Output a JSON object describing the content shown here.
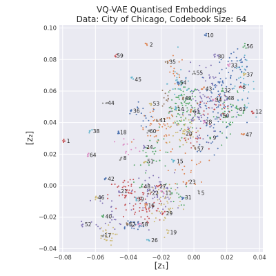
{
  "chart_data": {
    "type": "scatter",
    "title": "VQ-VAE Quantised Embeddings",
    "subtitle": "Data: City of Chicago, Codebook Size: 64",
    "xlabel": "[z₁]",
    "ylabel": "[z₂]",
    "xlim": [
      -0.082,
      0.042
    ],
    "ylim": [
      -0.042,
      0.102
    ],
    "xticks": [
      "−0.08",
      "−0.06",
      "−0.04",
      "−0.02",
      "0.00",
      "0.02",
      "0.04"
    ],
    "yticks": [
      "−0.04",
      "−0.02",
      "0.00",
      "0.02",
      "0.04",
      "0.06",
      "0.08",
      "0.10"
    ],
    "grid": true,
    "background": "#eaeaf2",
    "palette": [
      "#4c72b0",
      "#dd8452",
      "#55a868",
      "#c44e52",
      "#8172b3",
      "#937860",
      "#da8bc3",
      "#8c8c8c",
      "#ccb974",
      "#64b5cd"
    ],
    "codebook_labels": [
      {
        "label": "10",
        "x": 0.008,
        "y": 0.0955
      },
      {
        "label": "2",
        "x": -0.027,
        "y": 0.0895
      },
      {
        "label": "56",
        "x": 0.032,
        "y": 0.0885
      },
      {
        "label": "59",
        "x": -0.047,
        "y": 0.0825
      },
      {
        "label": "30",
        "x": 0.0145,
        "y": 0.082
      },
      {
        "label": "35",
        "x": -0.015,
        "y": 0.0785
      },
      {
        "label": "33",
        "x": 0.0225,
        "y": 0.0765
      },
      {
        "label": "55",
        "x": 0.0015,
        "y": 0.0715
      },
      {
        "label": "37",
        "x": 0.032,
        "y": 0.0705
      },
      {
        "label": "45",
        "x": -0.036,
        "y": 0.0675
      },
      {
        "label": "54",
        "x": -0.0085,
        "y": 0.0655
      },
      {
        "label": "43",
        "x": 0.007,
        "y": 0.0615
      },
      {
        "label": "32",
        "x": 0.0185,
        "y": 0.0605
      },
      {
        "label": "6",
        "x": 0.0295,
        "y": 0.0625
      },
      {
        "label": "48",
        "x": 0.0205,
        "y": 0.0555
      },
      {
        "label": "49",
        "x": -0.0055,
        "y": 0.0555
      },
      {
        "label": "34",
        "x": 0.013,
        "y": 0.0545
      },
      {
        "label": "44",
        "x": -0.0525,
        "y": 0.0525
      },
      {
        "label": "53",
        "x": -0.025,
        "y": 0.052
      },
      {
        "label": "14",
        "x": -0.01,
        "y": 0.0485
      },
      {
        "label": "36",
        "x": -0.037,
        "y": 0.0475
      },
      {
        "label": "61",
        "x": -0.0005,
        "y": 0.047
      },
      {
        "label": "63",
        "x": 0.0275,
        "y": 0.0485
      },
      {
        "label": "12",
        "x": 0.0375,
        "y": 0.047
      },
      {
        "label": "50",
        "x": 0.0175,
        "y": 0.0445
      },
      {
        "label": "41",
        "x": -0.021,
        "y": 0.0415
      },
      {
        "label": "28",
        "x": 0.007,
        "y": 0.0405
      },
      {
        "label": "60",
        "x": -0.027,
        "y": 0.0345
      },
      {
        "label": "20",
        "x": -0.005,
        "y": 0.033
      },
      {
        "label": "38",
        "x": -0.0615,
        "y": 0.0345
      },
      {
        "label": "18",
        "x": -0.045,
        "y": 0.034
      },
      {
        "label": "47",
        "x": 0.0315,
        "y": 0.0325
      },
      {
        "label": "9",
        "x": 0.0115,
        "y": 0.0305
      },
      {
        "label": "1",
        "x": -0.0775,
        "y": 0.0285
      },
      {
        "label": "24",
        "x": -0.029,
        "y": 0.0245
      },
      {
        "label": "57",
        "x": 0.002,
        "y": 0.0235
      },
      {
        "label": "64",
        "x": -0.0635,
        "y": 0.0195
      },
      {
        "label": "8",
        "x": -0.043,
        "y": 0.0175
      },
      {
        "label": "51",
        "x": -0.0285,
        "y": 0.0155
      },
      {
        "label": "15",
        "x": -0.0105,
        "y": 0.0155
      },
      {
        "label": "42",
        "x": -0.0525,
        "y": 0.0045
      },
      {
        "label": "23",
        "x": -0.003,
        "y": 0.0025
      },
      {
        "label": "48",
        "x": -0.0305,
        "y": -0.0005
      },
      {
        "label": "27",
        "x": -0.021,
        "y": -0.0005
      },
      {
        "label": "21",
        "x": -0.0445,
        "y": -0.0035
      },
      {
        "label": "22",
        "x": -0.0255,
        "y": -0.0045
      },
      {
        "label": "11",
        "x": -0.0175,
        "y": -0.0045
      },
      {
        "label": "5",
        "x": 0.0045,
        "y": -0.0045
      },
      {
        "label": "46",
        "x": -0.0585,
        "y": -0.0075
      },
      {
        "label": "39",
        "x": -0.0345,
        "y": -0.0085
      },
      {
        "label": "31",
        "x": -0.0055,
        "y": -0.0075
      },
      {
        "label": "16",
        "x": -0.028,
        "y": -0.0125
      },
      {
        "label": "40",
        "x": -0.054,
        "y": -0.0195
      },
      {
        "label": "29",
        "x": -0.017,
        "y": -0.0175
      },
      {
        "label": "52",
        "x": -0.0665,
        "y": -0.0245
      },
      {
        "label": "62",
        "x": -0.0395,
        "y": -0.0245
      },
      {
        "label": "58",
        "x": -0.032,
        "y": -0.0245
      },
      {
        "label": "17",
        "x": -0.0545,
        "y": -0.0315
      },
      {
        "label": "19",
        "x": -0.0145,
        "y": -0.0295
      },
      {
        "label": "26",
        "x": -0.026,
        "y": -0.0345
      }
    ],
    "point_clusters": [
      {
        "x": -0.006,
        "y": 0.05,
        "sx": 0.0045,
        "sy": 0.0075,
        "n": 90,
        "c": 2
      },
      {
        "x": -0.007,
        "y": 0.036,
        "sx": 0.005,
        "sy": 0.006,
        "n": 45,
        "c": 8
      },
      {
        "x": 0.004,
        "y": 0.052,
        "sx": 0.005,
        "sy": 0.008,
        "n": 40,
        "c": 4
      },
      {
        "x": 0.016,
        "y": 0.058,
        "sx": 0.006,
        "sy": 0.009,
        "n": 70,
        "c": 0
      },
      {
        "x": 0.022,
        "y": 0.046,
        "sx": 0.005,
        "sy": 0.006,
        "n": 45,
        "c": 2
      },
      {
        "x": 0.03,
        "y": 0.064,
        "sx": 0.0035,
        "sy": 0.008,
        "n": 30,
        "c": 9
      },
      {
        "x": 0.025,
        "y": 0.075,
        "sx": 0.006,
        "sy": 0.006,
        "n": 30,
        "c": 0
      },
      {
        "x": -0.008,
        "y": 0.065,
        "sx": 0.004,
        "sy": 0.007,
        "n": 25,
        "c": 9
      },
      {
        "x": -0.012,
        "y": 0.072,
        "sx": 0.003,
        "sy": 0.005,
        "n": 15,
        "c": 1
      },
      {
        "x": -0.022,
        "y": 0.034,
        "sx": 0.006,
        "sy": 0.007,
        "n": 45,
        "c": 1
      },
      {
        "x": -0.023,
        "y": 0.02,
        "sx": 0.006,
        "sy": 0.007,
        "n": 30,
        "c": 2
      },
      {
        "x": 0.003,
        "y": 0.04,
        "sx": 0.006,
        "sy": 0.007,
        "n": 30,
        "c": 4
      },
      {
        "x": 0.012,
        "y": 0.034,
        "sx": 0.006,
        "sy": 0.006,
        "n": 25,
        "c": 0
      },
      {
        "x": -0.024,
        "y": -0.004,
        "sx": 0.006,
        "sy": 0.006,
        "n": 55,
        "c": 4
      },
      {
        "x": -0.04,
        "y": -0.006,
        "sx": 0.006,
        "sy": 0.006,
        "n": 45,
        "c": 3
      },
      {
        "x": -0.017,
        "y": -0.01,
        "sx": 0.005,
        "sy": 0.008,
        "n": 40,
        "c": 8
      },
      {
        "x": -0.03,
        "y": -0.016,
        "sx": 0.006,
        "sy": 0.006,
        "n": 40,
        "c": 3
      },
      {
        "x": -0.05,
        "y": -0.016,
        "sx": 0.005,
        "sy": 0.006,
        "n": 25,
        "c": 4
      },
      {
        "x": -0.038,
        "y": -0.025,
        "sx": 0.004,
        "sy": 0.002,
        "n": 25,
        "c": 0
      },
      {
        "x": -0.054,
        "y": -0.032,
        "sx": 0.003,
        "sy": 0.003,
        "n": 25,
        "c": 8
      },
      {
        "x": -0.012,
        "y": -0.005,
        "sx": 0.004,
        "sy": 0.004,
        "n": 15,
        "c": 2
      },
      {
        "x": -0.004,
        "y": 0.01,
        "sx": 0.006,
        "sy": 0.006,
        "n": 20,
        "c": 1
      },
      {
        "x": 0.012,
        "y": 0.05,
        "sx": 0.005,
        "sy": 0.005,
        "n": 25,
        "c": 3
      },
      {
        "x": 0.008,
        "y": 0.07,
        "sx": 0.005,
        "sy": 0.006,
        "n": 20,
        "c": 4
      },
      {
        "x": -0.03,
        "y": 0.045,
        "sx": 0.004,
        "sy": 0.005,
        "n": 15,
        "c": 0
      },
      {
        "x": -0.04,
        "y": 0.022,
        "sx": 0.004,
        "sy": 0.004,
        "n": 12,
        "c": 6
      },
      {
        "x": 0.0,
        "y": 0.028,
        "sx": 0.004,
        "sy": 0.005,
        "n": 15,
        "c": 3
      },
      {
        "x": -0.015,
        "y": 0.055,
        "sx": 0.004,
        "sy": 0.005,
        "n": 15,
        "c": 5
      }
    ]
  }
}
